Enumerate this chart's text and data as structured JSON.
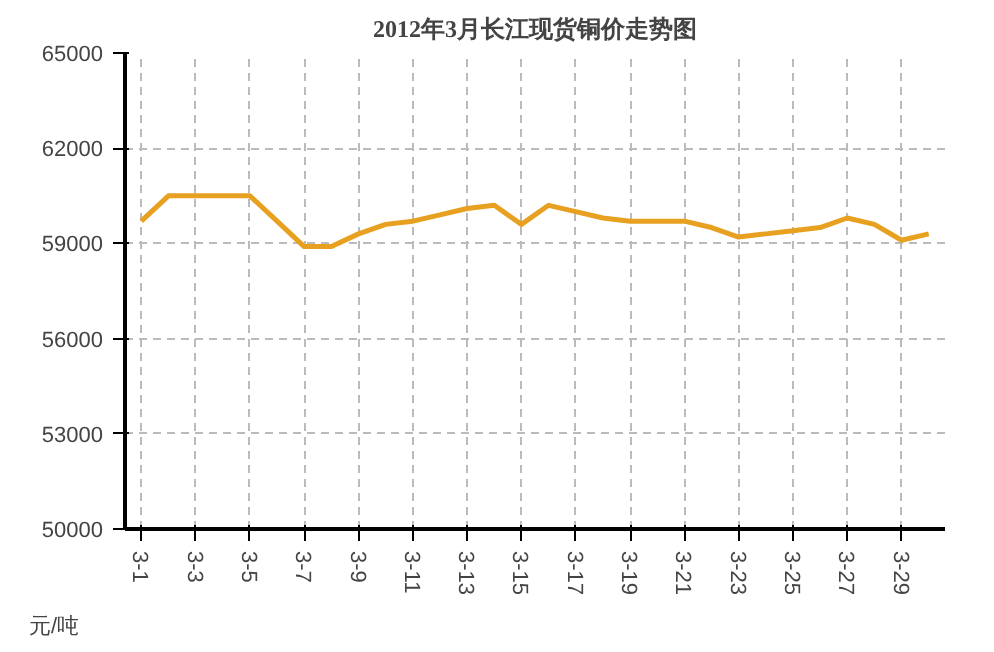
{
  "chart_data": {
    "type": "line",
    "title": "2012年3月长江现货铜价走势图",
    "ylabel": "元/吨",
    "categories": [
      "3-1",
      null,
      "3-3",
      null,
      "3-5",
      null,
      "3-7",
      null,
      "3-9",
      null,
      "3-11",
      null,
      "3-13",
      null,
      "3-15",
      null,
      "3-17",
      null,
      "3-19",
      null,
      "3-21",
      null,
      "3-23",
      null,
      "3-25",
      null,
      "3-27",
      null,
      "3-29",
      null
    ],
    "series": [
      {
        "color": "#e8a020",
        "values": [
          59700,
          60500,
          60500,
          60500,
          60500,
          59700,
          58900,
          58900,
          59300,
          59600,
          59700,
          59900,
          60100,
          60200,
          59600,
          60200,
          60000,
          59800,
          59700,
          59700,
          59700,
          59500,
          59200,
          59300,
          59400,
          59500,
          59800,
          59600,
          59100,
          59300
        ]
      }
    ],
    "ylim": [
      50000,
      65000
    ],
    "yticks": [
      50000,
      53000,
      56000,
      59000,
      62000,
      65000
    ],
    "grid": true,
    "marker": "none",
    "line_style": "solid"
  }
}
